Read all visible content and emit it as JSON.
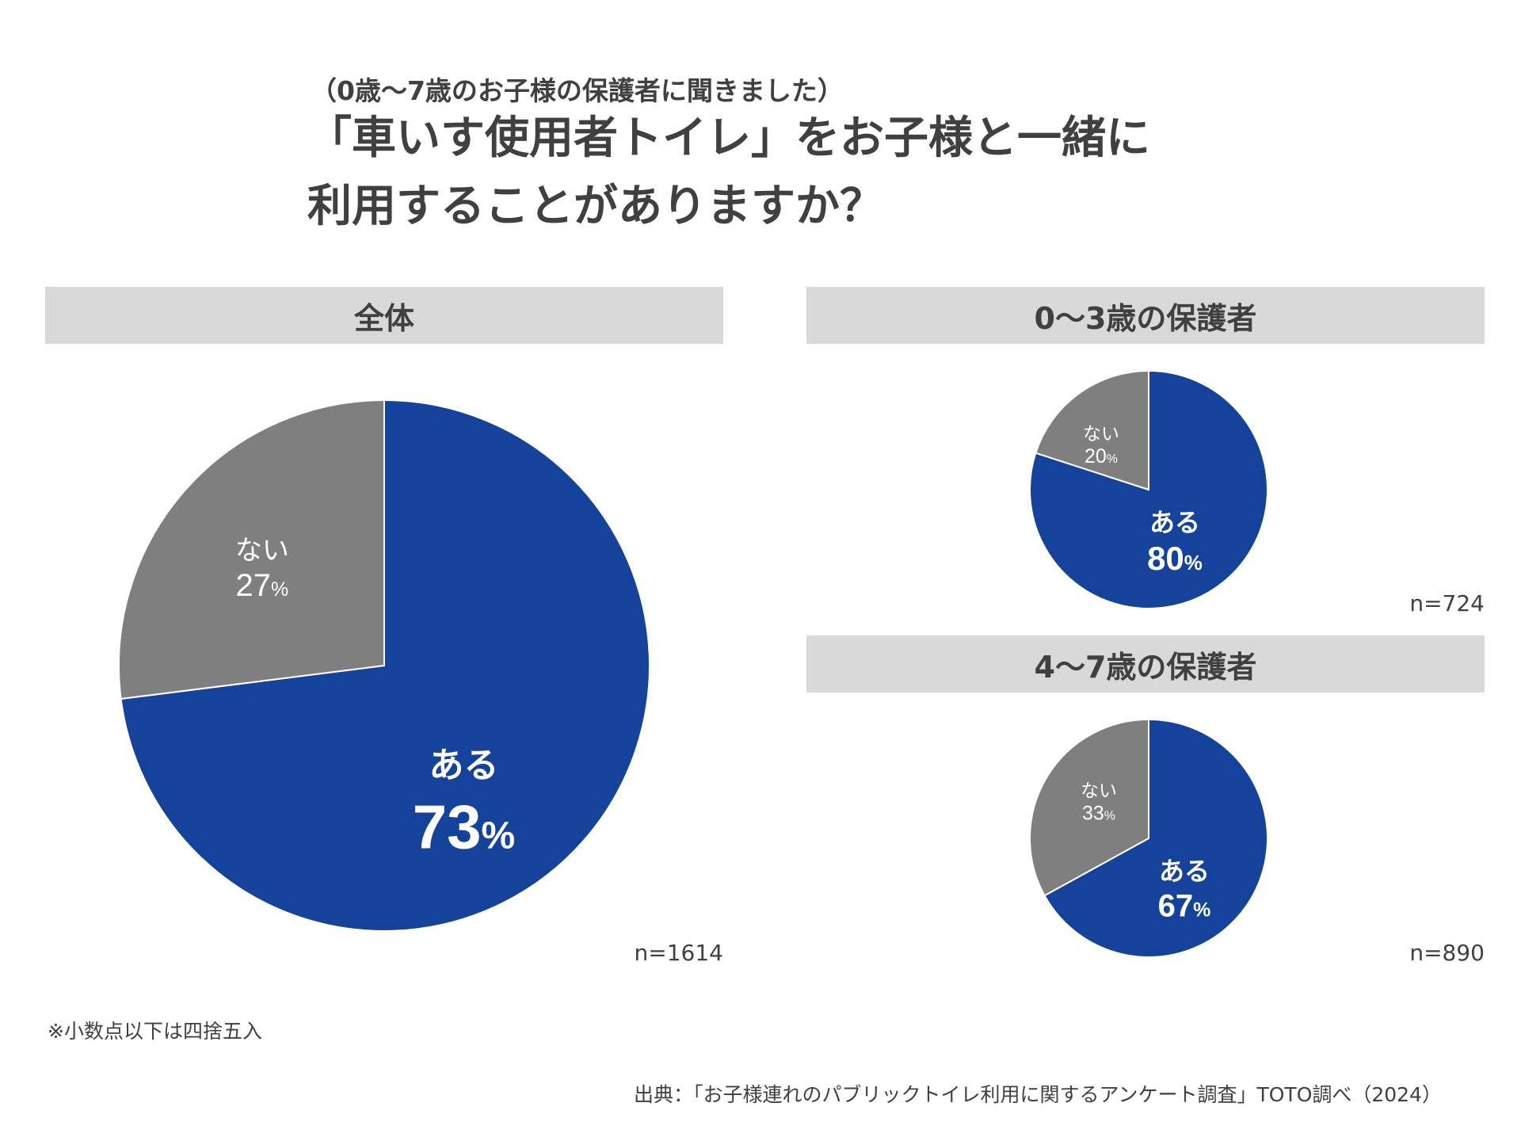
{
  "header": {
    "subtitle": "（0歳〜7歳のお子様の保護者に聞きました）",
    "title_line1": "「車いす使用者トイレ」をお子様と一緒に",
    "title_line2": "利用することがありますか？"
  },
  "colors": {
    "yes": "#15439c",
    "no": "#7f7f7f",
    "header_bg": "#d9d9d9",
    "text": "#404040"
  },
  "chart_data": [
    {
      "type": "pie",
      "title": "全体",
      "n_label": "n=1614",
      "slices": [
        {
          "label": "ある",
          "value": 73,
          "display": "73%"
        },
        {
          "label": "ない",
          "value": 27,
          "display": "27%"
        }
      ]
    },
    {
      "type": "pie",
      "title": "0〜3歳の保護者",
      "n_label": "n=724",
      "slices": [
        {
          "label": "ある",
          "value": 80,
          "display": "80%"
        },
        {
          "label": "ない",
          "value": 20,
          "display": "20%"
        }
      ]
    },
    {
      "type": "pie",
      "title": "4〜7歳の保護者",
      "n_label": "n=890",
      "slices": [
        {
          "label": "ある",
          "value": 67,
          "display": "67%"
        },
        {
          "label": "ない",
          "value": 33,
          "display": "33%"
        }
      ]
    }
  ],
  "footer": {
    "note": "※小数点以下は四捨五入",
    "source": "出典：「お子様連れのパブリックトイレ利用に関するアンケート調査」TOTO調べ（2024）"
  }
}
